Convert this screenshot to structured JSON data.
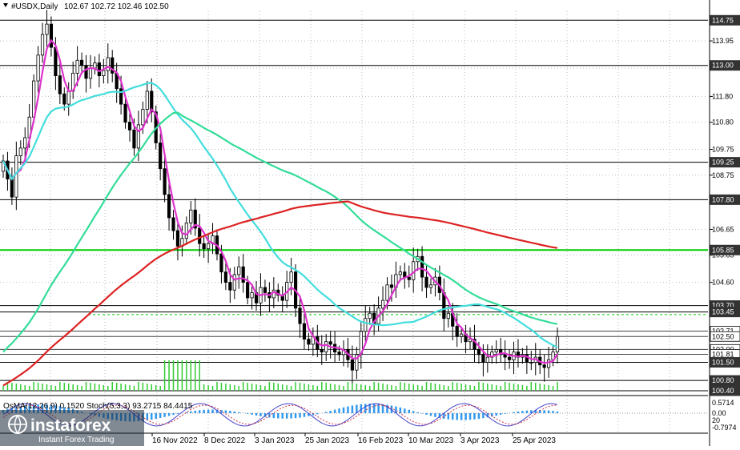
{
  "header": {
    "symbol": "#USDX,Daily",
    "ohlc": "102.67 102.72 102.46 102.50"
  },
  "chart_data": {
    "type": "candlestick",
    "price_axis": {
      "ylim": [
        100.4,
        115.1
      ],
      "grid_ticks": [
        "113.95",
        "112.90",
        "111.80",
        "110.80",
        "109.75",
        "108.75",
        "106.65",
        "105.65",
        "104.60"
      ],
      "boxed_levels": [
        {
          "value": 114.75,
          "label": "114.75",
          "style": "dark"
        },
        {
          "value": 113.0,
          "label": "113.00",
          "style": "dark"
        },
        {
          "value": 109.25,
          "label": "109.25",
          "style": "dark"
        },
        {
          "value": 107.8,
          "label": "107.80",
          "style": "dark"
        },
        {
          "value": 105.85,
          "label": "105.85",
          "style": "dark"
        },
        {
          "value": 103.7,
          "label": "103.70",
          "style": "dark"
        },
        {
          "value": 103.45,
          "label": "103.45",
          "style": "dark"
        },
        {
          "value": 102.71,
          "label": "102.71",
          "style": "light"
        },
        {
          "value": 102.5,
          "label": "102.50",
          "style": "light"
        },
        {
          "value": 102.0,
          "label": "102.00",
          "style": "light"
        },
        {
          "value": 101.81,
          "label": "101.81",
          "style": "light"
        },
        {
          "value": 101.5,
          "label": "101.50",
          "style": "dark"
        },
        {
          "value": 100.8,
          "label": "100.80",
          "style": "dark"
        },
        {
          "value": 100.4,
          "label": "100.40",
          "style": "dark"
        }
      ]
    },
    "time_axis": [
      "16 Nov 2022",
      "8 Dec 2022",
      "3 Jan 2023",
      "25 Jan 2023",
      "16 Feb 2023",
      "10 Mar 2023",
      "3 Apr 2023",
      "25 Apr 2023"
    ],
    "close_series": [
      109.3,
      108.6,
      107.9,
      109.5,
      109.8,
      110.2,
      111.0,
      112.4,
      113.4,
      114.2,
      114.6,
      113.7,
      112.6,
      111.9,
      111.5,
      112.0,
      112.7,
      113.2,
      113.0,
      112.5,
      112.9,
      113.1,
      112.6,
      112.8,
      113.3,
      112.7,
      112.1,
      111.5,
      110.8,
      110.5,
      109.8,
      110.7,
      111.3,
      112.0,
      111.2,
      110.0,
      109.0,
      108.0,
      107.1,
      106.6,
      106.0,
      106.3,
      106.9,
      107.4,
      106.7,
      106.1,
      105.9,
      106.1,
      106.4,
      105.7,
      105.0,
      104.6,
      104.3,
      104.9,
      105.2,
      104.6,
      104.0,
      104.2,
      103.8,
      104.4,
      104.2,
      104.0,
      104.3,
      104.1,
      103.9,
      104.6,
      105.0,
      103.6,
      103.0,
      102.4,
      102.2,
      102.5,
      102.0,
      101.9,
      102.3,
      102.2,
      101.9,
      101.8,
      102.0,
      101.6,
      101.2,
      101.8,
      102.7,
      103.2,
      103.4,
      103.0,
      103.6,
      103.9,
      104.5,
      104.4,
      104.9,
      105.0,
      104.8,
      104.7,
      105.4,
      105.6,
      104.8,
      104.4,
      104.5,
      104.8,
      104.2,
      103.2,
      103.4,
      102.9,
      102.5,
      102.6,
      102.3,
      102.4,
      102.0,
      101.8,
      101.5,
      101.7,
      101.9,
      102.0,
      101.8,
      101.7,
      101.6,
      101.9,
      101.7,
      101.8,
      101.5,
      101.5,
      101.7,
      101.4,
      101.3,
      101.6,
      101.9,
      102.5
    ],
    "moving_averages": [
      {
        "name": "MA",
        "color": "#dd33cc",
        "period": 4
      },
      {
        "name": "MA",
        "color": "#44dddd",
        "period": 28
      },
      {
        "name": "MA",
        "color": "#33dd99",
        "period": 72
      },
      {
        "name": "MA",
        "color": "#dd2222",
        "period": 144
      }
    ],
    "volume_color": "#33cc33",
    "oscillator": {
      "label": "OsMA(12,26,9) 0.1520  Stoch(5,3,3) 93.2715 84.4415",
      "scale_labels": [
        "0.5714",
        "0.00",
        "20",
        "-0.7974"
      ],
      "histogram_color": "#3399ee",
      "main_color": "#4444cc",
      "signal_color": "#cc3344"
    }
  },
  "watermark": {
    "brand": "instaforex",
    "tagline": "Instant Forex Trading"
  },
  "colors": {
    "background": "#ffffff",
    "candle": "#000000",
    "horizontal_level": "#000000",
    "green_level": "#00cc00",
    "grid": "#bbbbbb",
    "dark_box": "#333333",
    "light_box": "#ffffff"
  }
}
